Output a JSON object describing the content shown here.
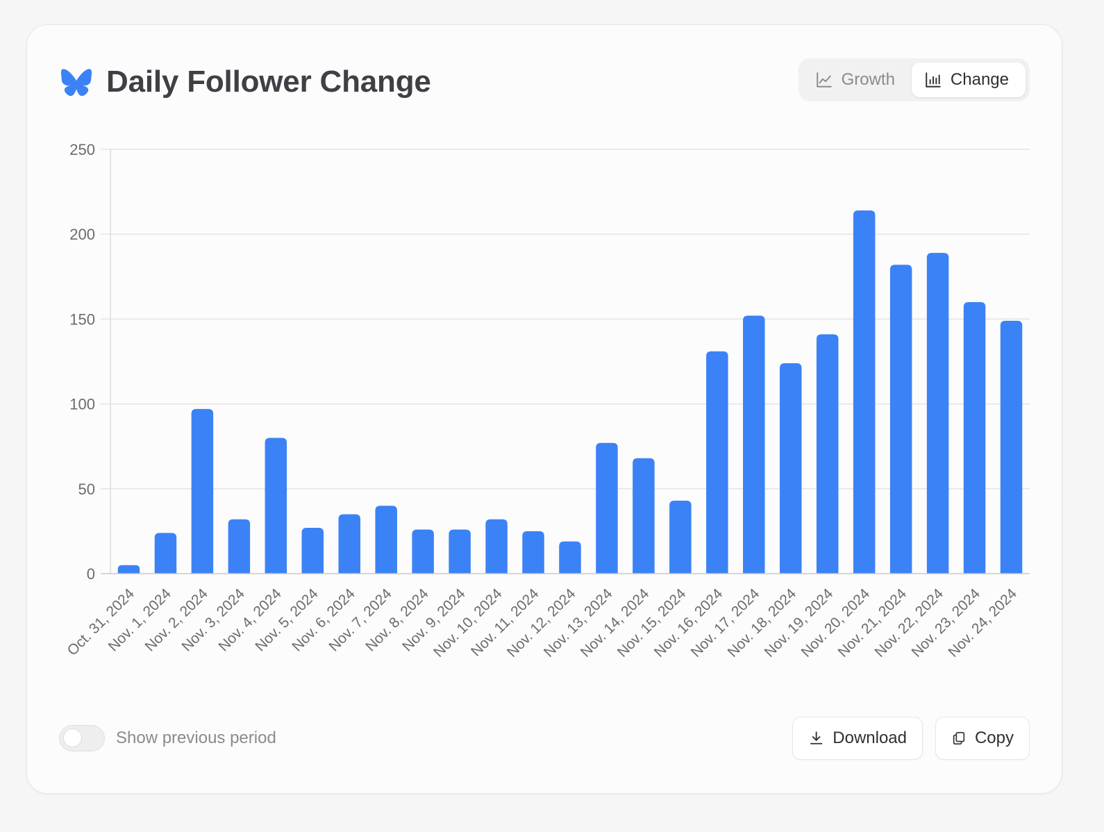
{
  "header": {
    "title": "Daily Follower Change",
    "logo_icon": "butterfly-icon",
    "accent_color": "#3b82f6"
  },
  "view_toggle": {
    "options": [
      {
        "label": "Growth",
        "icon": "line-chart-icon",
        "active": false
      },
      {
        "label": "Change",
        "icon": "bar-chart-icon",
        "active": true
      }
    ]
  },
  "chart_data": {
    "type": "bar",
    "title": "Daily Follower Change",
    "xlabel": "",
    "ylabel": "",
    "ylim": [
      0,
      250
    ],
    "yticks": [
      0,
      50,
      100,
      150,
      200,
      250
    ],
    "grid": true,
    "bar_color": "#3b82f6",
    "categories": [
      "Oct. 31, 2024",
      "Nov. 1, 2024",
      "Nov. 2, 2024",
      "Nov. 3, 2024",
      "Nov. 4, 2024",
      "Nov. 5, 2024",
      "Nov. 6, 2024",
      "Nov. 7, 2024",
      "Nov. 8, 2024",
      "Nov. 9, 2024",
      "Nov. 10, 2024",
      "Nov. 11, 2024",
      "Nov. 12, 2024",
      "Nov. 13, 2024",
      "Nov. 14, 2024",
      "Nov. 15, 2024",
      "Nov. 16, 2024",
      "Nov. 17, 2024",
      "Nov. 18, 2024",
      "Nov. 19, 2024",
      "Nov. 20, 2024",
      "Nov. 21, 2024",
      "Nov. 22, 2024",
      "Nov. 23, 2024",
      "Nov. 24, 2024"
    ],
    "values": [
      5,
      24,
      97,
      32,
      80,
      27,
      35,
      40,
      26,
      26,
      32,
      25,
      19,
      77,
      68,
      43,
      131,
      152,
      124,
      141,
      214,
      182,
      189,
      160,
      149
    ]
  },
  "footer": {
    "toggle_label": "Show previous period",
    "toggle_on": false,
    "download_label": "Download",
    "download_icon": "download-icon",
    "copy_label": "Copy",
    "copy_icon": "copy-icon"
  }
}
